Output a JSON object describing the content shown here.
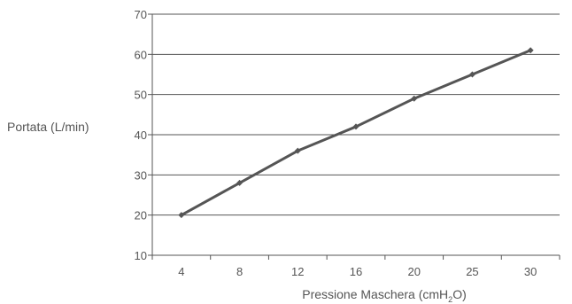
{
  "chart_data": {
    "type": "line",
    "title": "",
    "xlabel": "Pressione Maschera (cmH2O)",
    "xlabel_parts": {
      "pre": "Pressione Maschera (cmH",
      "sub": "2",
      "post": "O)"
    },
    "ylabel": "Portata (L/min)",
    "categories": [
      "4",
      "8",
      "12",
      "16",
      "20",
      "25",
      "30"
    ],
    "series": [
      {
        "values": [
          20,
          28,
          36,
          42,
          49,
          55,
          61
        ]
      }
    ],
    "ylim": [
      10,
      70
    ],
    "yticks": [
      10,
      20,
      30,
      40,
      50,
      60,
      70
    ],
    "grid": "horizontal",
    "line_color": "#555555",
    "grid_color": "#555555"
  }
}
